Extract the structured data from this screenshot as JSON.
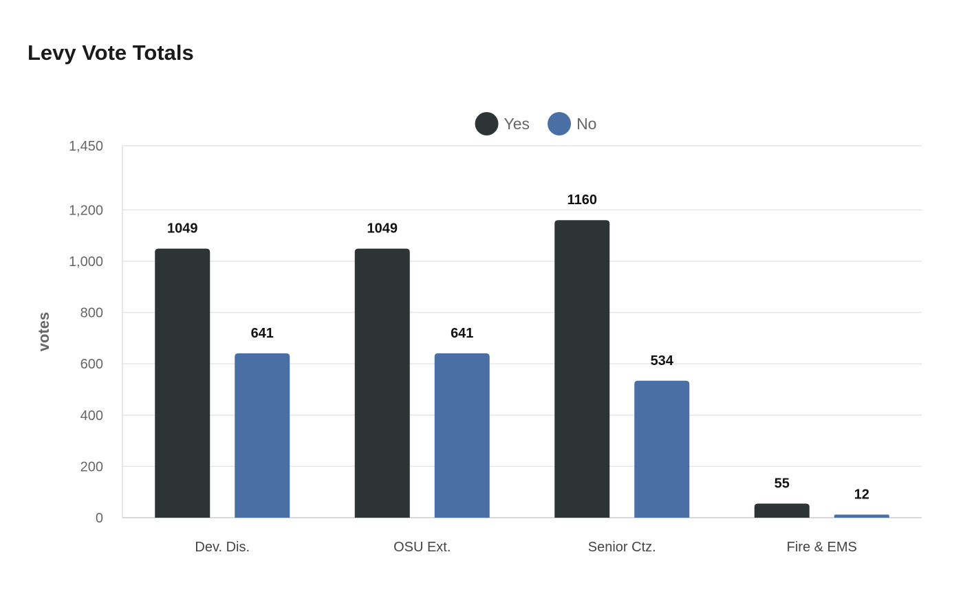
{
  "chart_data": {
    "type": "bar",
    "title": "Levy Vote Totals",
    "xlabel": "",
    "ylabel": "votes",
    "ylim": [
      0,
      1450
    ],
    "yticks": [
      0,
      200,
      400,
      600,
      800,
      1000,
      1200,
      1450
    ],
    "ytick_labels": [
      "0",
      "200",
      "400",
      "600",
      "800",
      "1,000",
      "1,200",
      "1,450"
    ],
    "categories": [
      "Dev. Dis.",
      "OSU Ext.",
      "Senior Ctz.",
      "Fire & EMS"
    ],
    "series": [
      {
        "name": "Yes",
        "color": "#2d3436",
        "values": [
          1049,
          1049,
          1160,
          55
        ]
      },
      {
        "name": "No",
        "color": "#4a6fa5",
        "values": [
          641,
          641,
          534,
          12
        ]
      }
    ],
    "grid": true,
    "legend_position": "top-center",
    "data_labels": true
  }
}
